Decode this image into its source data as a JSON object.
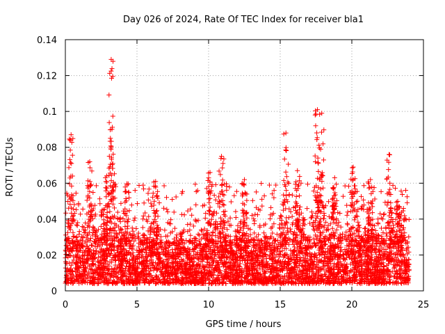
{
  "chart_data": {
    "type": "scatter",
    "title": "Day 026 of 2024, Rate Of TEC Index for receiver bla1",
    "xlabel": "GPS time / hours",
    "ylabel": "ROTI / TECUs",
    "xlim": [
      0,
      25
    ],
    "ylim": [
      0,
      0.14
    ],
    "x_ticks": [
      0,
      5,
      10,
      15,
      20,
      25
    ],
    "x_tick_labels": [
      "0",
      "5",
      "10",
      "15",
      "20",
      "25"
    ],
    "y_ticks": [
      0,
      0.02,
      0.04,
      0.06,
      0.08,
      0.1,
      0.12,
      0.14
    ],
    "y_tick_labels": [
      "0",
      "0.02",
      "0.04",
      "0.06",
      "0.08",
      "0.1",
      "0.12",
      "0.14"
    ],
    "grid": true,
    "marker": "+",
    "color": "#ff0000",
    "x_range_of_data": [
      0,
      24
    ],
    "baseline_range": [
      0.004,
      0.028
    ],
    "peaks": [
      {
        "x": 0.4,
        "y": 0.087
      },
      {
        "x": 1.7,
        "y": 0.072
      },
      {
        "x": 2.8,
        "y": 0.063
      },
      {
        "x": 3.2,
        "y": 0.129
      },
      {
        "x": 3.25,
        "y": 0.09
      },
      {
        "x": 4.3,
        "y": 0.059
      },
      {
        "x": 6.3,
        "y": 0.061
      },
      {
        "x": 10.1,
        "y": 0.066
      },
      {
        "x": 10.9,
        "y": 0.075
      },
      {
        "x": 12.5,
        "y": 0.062
      },
      {
        "x": 15.4,
        "y": 0.088
      },
      {
        "x": 16.2,
        "y": 0.067
      },
      {
        "x": 17.6,
        "y": 0.101
      },
      {
        "x": 17.9,
        "y": 0.099
      },
      {
        "x": 18.8,
        "y": 0.063
      },
      {
        "x": 20.1,
        "y": 0.069
      },
      {
        "x": 21.3,
        "y": 0.062
      },
      {
        "x": 22.6,
        "y": 0.076
      },
      {
        "x": 23.3,
        "y": 0.047
      }
    ]
  }
}
